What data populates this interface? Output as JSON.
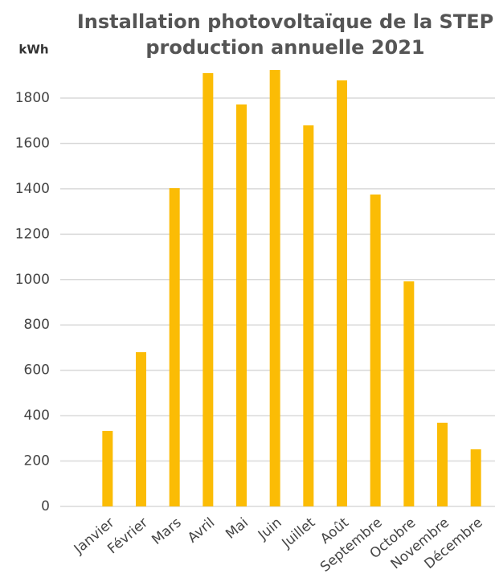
{
  "chart_data": {
    "type": "bar",
    "title": [
      "Installation photovoltaïque de la STEP",
      "production annuelle 2021"
    ],
    "y_label": "kWh",
    "categories": [
      "Janvier",
      "Février",
      "Mars",
      "Avril",
      "Mai",
      "Juin",
      "Juillet",
      "Août",
      "Septembre",
      "Octobre",
      "Novembre",
      "Décembre"
    ],
    "values": [
      333,
      680,
      1403,
      1910,
      1772,
      1924,
      1680,
      1878,
      1375,
      992,
      369,
      252
    ],
    "color": "#fbbc05",
    "ylim": [
      0,
      2000
    ],
    "yticks": [
      0,
      200,
      400,
      600,
      800,
      1000,
      1200,
      1400,
      1600,
      1800
    ],
    "grid": true
  }
}
